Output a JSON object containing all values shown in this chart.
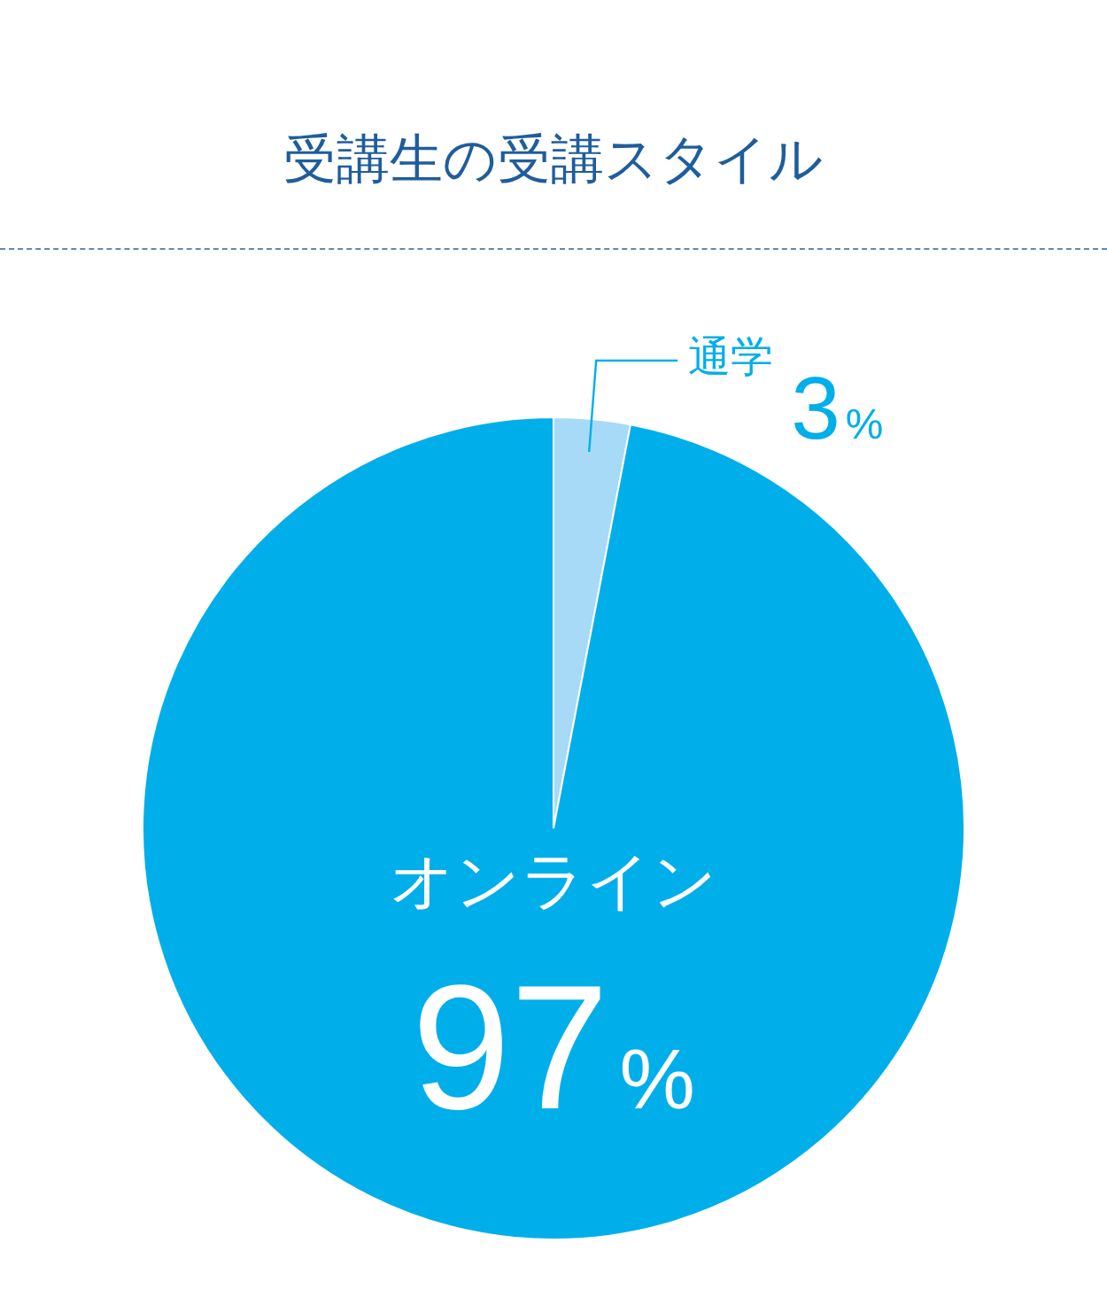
{
  "chart_data": {
    "type": "pie",
    "title": "受講生の受講スタイル",
    "categories": [
      "通学",
      "オンライン"
    ],
    "values": [
      3,
      97
    ],
    "colors": [
      "#a6daf6",
      "#00aeea"
    ],
    "value_labels": [
      "3%",
      "97%"
    ],
    "legend": false
  }
}
